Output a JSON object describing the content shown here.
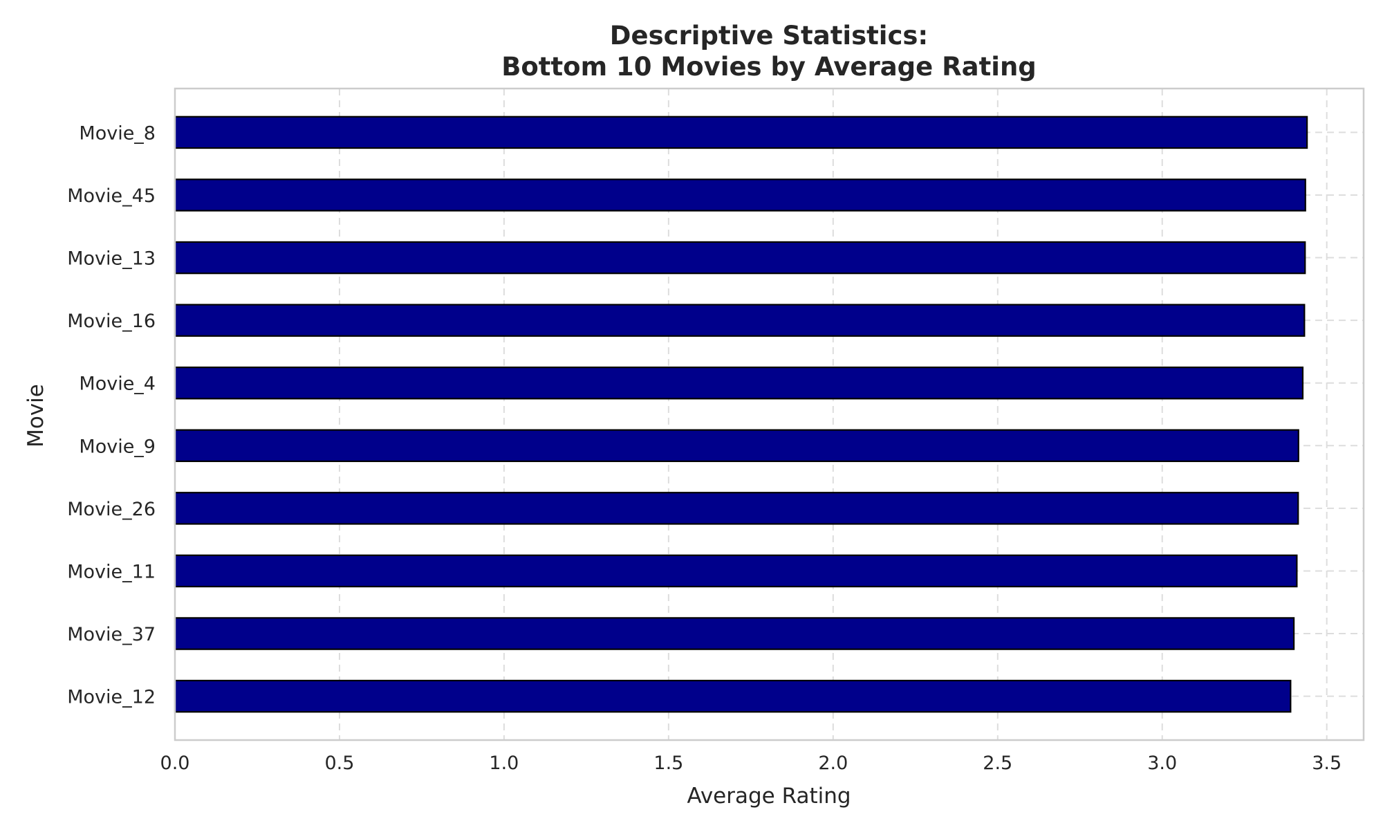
{
  "chart_data": {
    "type": "bar",
    "orientation": "horizontal",
    "title_lines": [
      "Descriptive Statistics:",
      "Bottom 10 Movies by Average Rating"
    ],
    "xlabel": "Average Rating",
    "ylabel": "Movie",
    "categories": [
      "Movie_8",
      "Movie_45",
      "Movie_13",
      "Movie_16",
      "Movie_4",
      "Movie_9",
      "Movie_26",
      "Movie_11",
      "Movie_37",
      "Movie_12"
    ],
    "values": [
      3.44,
      3.435,
      3.434,
      3.432,
      3.427,
      3.414,
      3.413,
      3.409,
      3.4,
      3.39
    ],
    "xlim": [
      0,
      3.612
    ],
    "xticks": [
      "0.0",
      "0.5",
      "1.0",
      "1.5",
      "2.0",
      "2.5",
      "3.0",
      "3.5"
    ],
    "grid": true,
    "colors": {
      "bar": "#00008b",
      "bar_edge": "#000000",
      "grid": "#dddddd",
      "frame": "#cccccc",
      "text": "#262626"
    }
  }
}
